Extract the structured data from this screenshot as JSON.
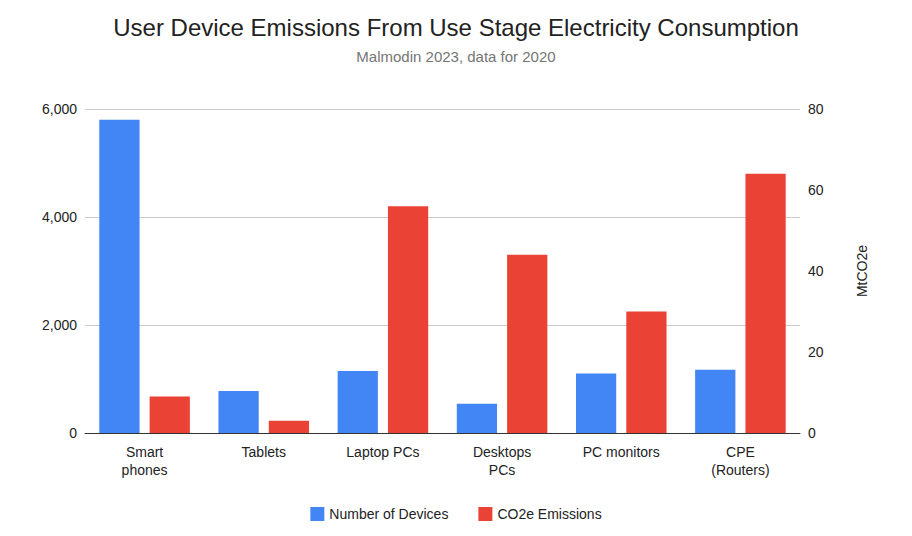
{
  "chart_data": {
    "type": "bar",
    "title": "User Device Emissions From Use Stage Electricity Consumption",
    "subtitle": "Malmodin 2023, data for 2020",
    "categories": [
      "Smart\nphones",
      "Tablets",
      "Laptop PCs",
      "Desktops\nPCs",
      "PC monitors",
      "CPE\n(Routers)"
    ],
    "series": [
      {
        "name": "Number of Devices",
        "color": "#4285f4",
        "values": [
          5800,
          780,
          1150,
          540,
          1100,
          1170
        ]
      },
      {
        "name": "CO2e Emissions",
        "color": "#ea4335",
        "axis": "y2",
        "values": [
          9,
          3,
          56,
          44,
          30,
          64
        ]
      }
    ],
    "ylim": [
      0,
      6000
    ],
    "yticks": [
      0,
      2000,
      4000,
      6000
    ],
    "y2lim": [
      0,
      80
    ],
    "y2ticks": [
      0,
      20,
      40,
      60,
      80
    ],
    "y2label": "MtCO2e",
    "grid": true,
    "legend": "bottom"
  }
}
